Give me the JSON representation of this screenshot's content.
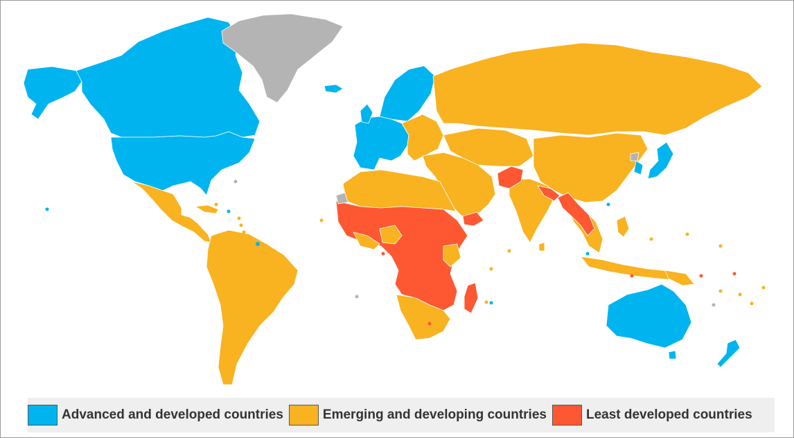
{
  "colors": {
    "advanced": "#00b4ef",
    "emerging": "#f9b220",
    "least": "#fe5833",
    "no_data": "#b4b4b4",
    "border": "#ffffff"
  },
  "legend": {
    "items": [
      {
        "label": "Advanced and developed countries",
        "color": "#00b4ef"
      },
      {
        "label": "Emerging and developing countries",
        "color": "#f9b220"
      },
      {
        "label": "Least developed countries",
        "color": "#fe5833"
      }
    ]
  }
}
